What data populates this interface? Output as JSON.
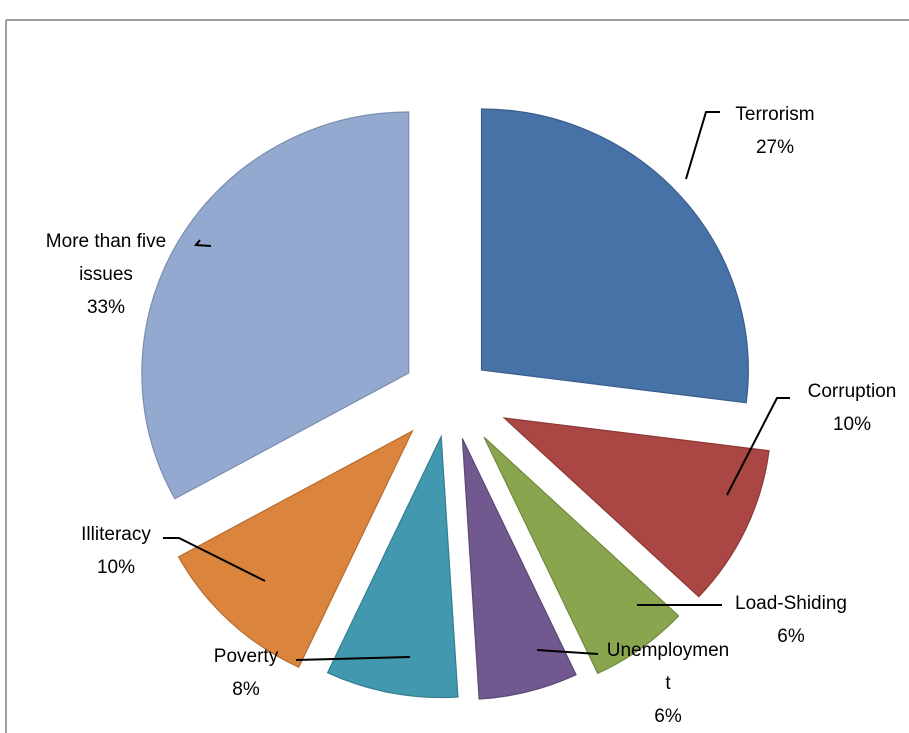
{
  "chart_data": {
    "type": "pie",
    "title": "",
    "categories": [
      "Terrorism",
      "Corruption",
      "Load-Shiding",
      "Unemploymen t",
      "Poverty",
      "Illiteracy",
      "More than five issues"
    ],
    "values": [
      27,
      10,
      6,
      6,
      8,
      10,
      33
    ],
    "value_labels": [
      "27%",
      "10%",
      "6%",
      "6%",
      "8%",
      "10%",
      "33%"
    ],
    "colors": [
      "#4672A8",
      "#AA4643",
      "#89A54E",
      "#71588F",
      "#4198AF",
      "#DB843D",
      "#93A9CF"
    ],
    "legend": "none",
    "exploded": true
  }
}
